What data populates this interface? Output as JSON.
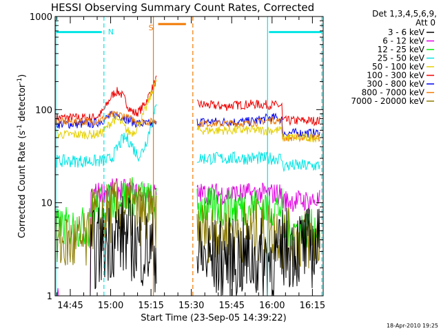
{
  "chart_data": {
    "type": "line",
    "title": "HESSI Observing Summary Count Rates, Corrected",
    "xlabel": "Start Time (23-Sep-05 14:39:22)",
    "ylabel": "Corrected Count Rate (s",
    "ylabel_sup1": "-1",
    "ylabel_mid": " detector",
    "ylabel_sup2": "-1",
    "ylabel_end": ")",
    "yscale": "log",
    "ylim": [
      1,
      1000
    ],
    "xlim_minutes": [
      "14:39:22",
      "16:19:00"
    ],
    "x_ticks": [
      "14:45",
      "15:00",
      "15:15",
      "15:30",
      "15:45",
      "16:00",
      "16:15"
    ],
    "y_ticks": [
      "1",
      "10",
      "100",
      "1000"
    ],
    "legend_header": [
      "Det 1,3,4,5,6,9,",
      "Att 0"
    ],
    "legend_placement": "right",
    "timestamp": "18-Apr-2010 19:25",
    "annotations": [
      {
        "label": "N",
        "color": "#00e5e5",
        "t_start": "14:39:22",
        "t_end": "14:57:30",
        "t_start2": "15:58:20",
        "t_end2": "16:18:30"
      },
      {
        "label": "S",
        "color": "#f07800",
        "t_start": "15:17:10",
        "t_end": "15:28:30"
      }
    ],
    "series": [
      {
        "name": "3 - 6 keV",
        "color": "#000000"
      },
      {
        "name": "6 - 12 keV",
        "color": "#e000e0"
      },
      {
        "name": "12 - 25 keV",
        "color": "#00ee00"
      },
      {
        "name": "25 - 50 keV",
        "color": "#00e5e5"
      },
      {
        "name": "50 - 100 keV",
        "color": "#e5d000"
      },
      {
        "name": "100 - 300 keV",
        "color": "#ee0000"
      },
      {
        "name": "300 - 800 keV",
        "color": "#0000ee"
      },
      {
        "name": "800 - 7000 keV",
        "color": "#f07800"
      },
      {
        "name": "7000 - 20000 keV",
        "color": "#8b7a00"
      }
    ]
  }
}
